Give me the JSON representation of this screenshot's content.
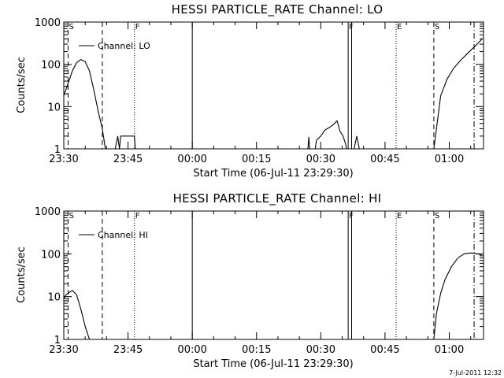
{
  "footer": {
    "timestamp": "7-Jul-2011 12:32"
  },
  "chart_data": [
    {
      "type": "line",
      "title": "HESSI PARTICLE_RATE Channel: LO",
      "xlabel": "Start Time (06-Jul-11 23:29:30)",
      "ylabel": "Counts/sec",
      "x_unit": "minutes after 23:30",
      "xlim": [
        0,
        98
      ],
      "ylim": [
        1,
        1000
      ],
      "yscale": "log",
      "x_ticks": [
        {
          "value": 0,
          "label": "23:30"
        },
        {
          "value": 15,
          "label": "23:45"
        },
        {
          "value": 30,
          "label": "00:00"
        },
        {
          "value": 45,
          "label": "00:15"
        },
        {
          "value": 60,
          "label": "00:30"
        },
        {
          "value": 75,
          "label": "00:45"
        },
        {
          "value": 90,
          "label": "01:00"
        }
      ],
      "y_ticks": [
        {
          "value": 1,
          "label": "1"
        },
        {
          "value": 10,
          "label": "10"
        },
        {
          "value": 100,
          "label": "100"
        },
        {
          "value": 1000,
          "label": "1000"
        }
      ],
      "legend": {
        "label": "Channel: LO",
        "position": "top-left"
      },
      "markers": [
        {
          "x": 1,
          "label": "S",
          "style": "dashed"
        },
        {
          "x": 9,
          "label": "",
          "style": "dashed"
        },
        {
          "x": 16.5,
          "label": "F",
          "style": "dotted"
        },
        {
          "x": 30,
          "label": "",
          "style": "solid"
        },
        {
          "x": 66.4,
          "label": "F",
          "style": "solid"
        },
        {
          "x": 67.2,
          "label": "",
          "style": "solid"
        },
        {
          "x": 77.6,
          "label": "E",
          "style": "dotted"
        },
        {
          "x": 86.4,
          "label": "S",
          "style": "dashed"
        },
        {
          "x": 95.8,
          "label": "",
          "style": "dashdot"
        }
      ],
      "series": [
        {
          "name": "Channel: LO",
          "segments": [
            [
              [
                0,
                18
              ],
              [
                1,
                35
              ],
              [
                2,
                70
              ],
              [
                3,
                110
              ],
              [
                4,
                130
              ],
              [
                5,
                115
              ],
              [
                6,
                70
              ],
              [
                7,
                25
              ],
              [
                8,
                8
              ],
              [
                9,
                3
              ],
              [
                9.7,
                1
              ]
            ],
            [
              [
                12,
                1
              ],
              [
                12.6,
                2
              ],
              [
                13,
                1
              ],
              [
                13.3,
                2
              ],
              [
                14.2,
                2
              ],
              [
                15.2,
                2
              ],
              [
                16.5,
                2
              ],
              [
                16.7,
                1
              ]
            ],
            [
              [
                67.8,
                1
              ],
              [
                68.4,
                2
              ],
              [
                69,
                1
              ]
            ],
            [
              [
                57,
                1
              ],
              [
                57.2,
                1.9
              ],
              [
                57.4,
                1
              ]
            ],
            [
              [
                58.7,
                1
              ],
              [
                59,
                1.6
              ],
              [
                60,
                2
              ],
              [
                61,
                2.8
              ],
              [
                62,
                3.2
              ],
              [
                63,
                3.8
              ],
              [
                63.8,
                4.6
              ],
              [
                64.5,
                2.6
              ],
              [
                65.2,
                2
              ],
              [
                65.8,
                1.3
              ],
              [
                66,
                1
              ]
            ],
            [
              [
                86.4,
                1
              ],
              [
                87,
                3
              ],
              [
                88,
                18
              ],
              [
                89.5,
                45
              ],
              [
                91,
                80
              ],
              [
                92.5,
                120
              ],
              [
                94,
                170
              ],
              [
                95.5,
                240
              ],
              [
                96.5,
                300
              ],
              [
                97.6,
                390
              ]
            ]
          ]
        }
      ]
    },
    {
      "type": "line",
      "title": "HESSI PARTICLE_RATE Channel: HI",
      "xlabel": "Start Time (06-Jul-11 23:29:30)",
      "ylabel": "Counts/sec",
      "x_unit": "minutes after 23:30",
      "xlim": [
        0,
        98
      ],
      "ylim": [
        1,
        1000
      ],
      "yscale": "log",
      "x_ticks": [
        {
          "value": 0,
          "label": "23:30"
        },
        {
          "value": 15,
          "label": "23:45"
        },
        {
          "value": 30,
          "label": "00:00"
        },
        {
          "value": 45,
          "label": "00:15"
        },
        {
          "value": 60,
          "label": "00:30"
        },
        {
          "value": 75,
          "label": "00:45"
        },
        {
          "value": 90,
          "label": "01:00"
        }
      ],
      "y_ticks": [
        {
          "value": 1,
          "label": "1"
        },
        {
          "value": 10,
          "label": "10"
        },
        {
          "value": 100,
          "label": "100"
        },
        {
          "value": 1000,
          "label": "1000"
        }
      ],
      "legend": {
        "label": "Channel: HI",
        "position": "top-left"
      },
      "markers": [
        {
          "x": 1,
          "label": "S",
          "style": "dashed"
        },
        {
          "x": 9,
          "label": "",
          "style": "dashed"
        },
        {
          "x": 16.5,
          "label": "F",
          "style": "dotted"
        },
        {
          "x": 30,
          "label": "",
          "style": "solid"
        },
        {
          "x": 66.4,
          "label": "F",
          "style": "solid"
        },
        {
          "x": 67.2,
          "label": "",
          "style": "solid"
        },
        {
          "x": 77.6,
          "label": "E",
          "style": "dotted"
        },
        {
          "x": 86.4,
          "label": "S",
          "style": "dashed"
        },
        {
          "x": 95.8,
          "label": "",
          "style": "dashdot"
        }
      ],
      "series": [
        {
          "name": "Channel: HI",
          "segments": [
            [
              [
                0,
                9
              ],
              [
                0.5,
                11
              ],
              [
                1,
                12
              ],
              [
                2,
                14
              ],
              [
                3,
                11
              ],
              [
                4,
                5
              ],
              [
                5,
                2
              ],
              [
                6,
                1
              ]
            ],
            [
              [
                86.4,
                1
              ],
              [
                87,
                4
              ],
              [
                88,
                12
              ],
              [
                89,
                25
              ],
              [
                90.5,
                50
              ],
              [
                92,
                80
              ],
              [
                93.5,
                100
              ],
              [
                95,
                105
              ],
              [
                96.5,
                100
              ],
              [
                97.6,
                95
              ]
            ]
          ]
        }
      ]
    }
  ]
}
